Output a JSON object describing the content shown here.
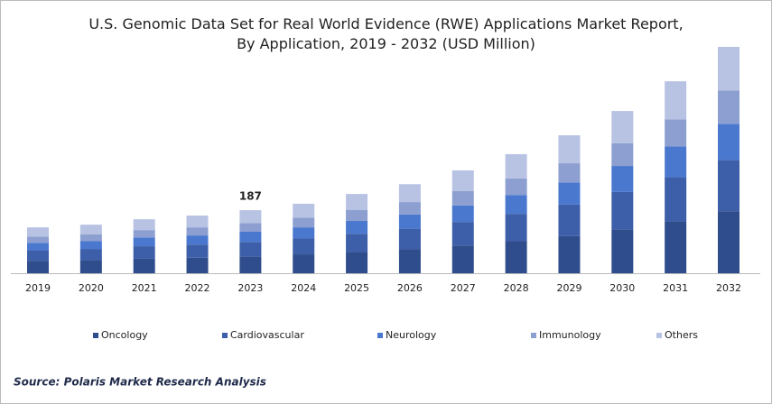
{
  "chart_data": {
    "type": "stacked_bar",
    "title": "U.S. Genomic Data Set for Real World Evidence (RWE) Applications Market Report, By Application, 2019 - 2032 (USD Million)",
    "categories": [
      "2019",
      "2020",
      "2021",
      "2022",
      "2023",
      "2024",
      "2025",
      "2026",
      "2027",
      "2028",
      "2029",
      "2030",
      "2031",
      "2032"
    ],
    "series": [
      {
        "name": "Oncology",
        "color": "#2f4d8c",
        "values": [
          37,
          39,
          43,
          46,
          50,
          56,
          63,
          71,
          82,
          95,
          110,
          130,
          154,
          184
        ]
      },
      {
        "name": "Cardiovascular",
        "color": "#3d5ea8",
        "values": [
          31,
          33,
          37,
          39,
          43,
          47,
          54,
          61,
          70,
          81,
          94,
          111,
          131,
          152
        ]
      },
      {
        "name": "Neurology",
        "color": "#4a78cf",
        "values": [
          22,
          23,
          26,
          27,
          30,
          33,
          38,
          42,
          49,
          56,
          65,
          77,
          91,
          107
        ]
      },
      {
        "name": "Immunology",
        "color": "#8c9fd0",
        "values": [
          19,
          20,
          22,
          24,
          26,
          29,
          33,
          37,
          43,
          49,
          57,
          67,
          80,
          99
        ]
      },
      {
        "name": "Others",
        "color": "#b8c3e4",
        "values": [
          27,
          29,
          32,
          35,
          38,
          41,
          47,
          53,
          61,
          72,
          83,
          96,
          113,
          129
        ]
      }
    ],
    "annotation": {
      "category": "2023",
      "value": 187
    },
    "source": "Source: Polaris  Market Research Analysis"
  }
}
